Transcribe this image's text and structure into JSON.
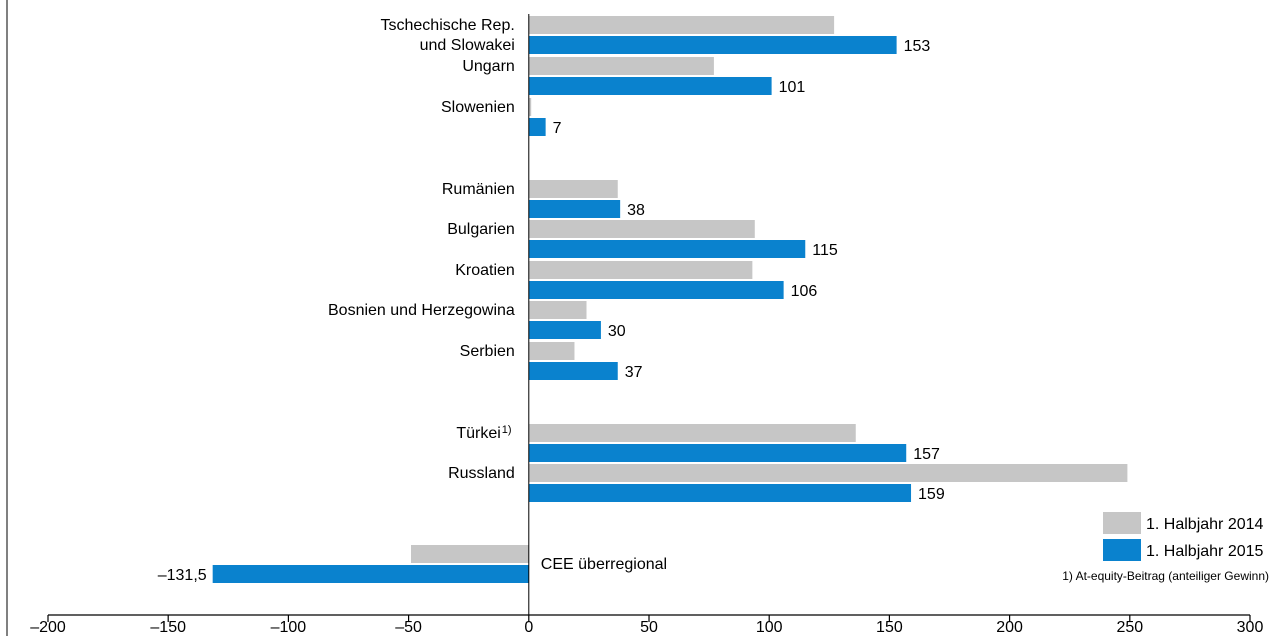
{
  "chart_data": {
    "type": "bar",
    "orientation": "horizontal",
    "groups": [
      {
        "label_lines": [
          "Tschechische Rep.",
          "und Slowakei"
        ],
        "prev": 127,
        "curr": 153,
        "curr_label": "153"
      },
      {
        "label_lines": [
          "Ungarn"
        ],
        "prev": 77,
        "curr": 101,
        "curr_label": "101"
      },
      {
        "label_lines": [
          "Slowenien"
        ],
        "prev": 1,
        "curr": 7,
        "curr_label": "7"
      },
      {
        "label_lines": [
          "Rumänien"
        ],
        "prev": 37,
        "curr": 38,
        "curr_label": "38"
      },
      {
        "label_lines": [
          "Bulgarien"
        ],
        "prev": 94,
        "curr": 115,
        "curr_label": "115"
      },
      {
        "label_lines": [
          "Kroatien"
        ],
        "prev": 93,
        "curr": 106,
        "curr_label": "106"
      },
      {
        "label_lines": [
          "Bosnien und Herzegowina"
        ],
        "prev": 24,
        "curr": 30,
        "curr_label": "30"
      },
      {
        "label_lines": [
          "Serbien"
        ],
        "prev": 19,
        "curr": 37,
        "curr_label": "37"
      },
      {
        "label_lines": [
          "Türkei"
        ],
        "sup": "1)",
        "prev": 136,
        "curr": 157,
        "curr_label": "157"
      },
      {
        "label_lines": [
          "Russland"
        ],
        "prev": 249,
        "curr": 159,
        "curr_label": "159"
      },
      {
        "label_lines": [
          "CEE überregional"
        ],
        "prev": -49,
        "curr": -131.5,
        "curr_label": "–131,5"
      }
    ],
    "series": [
      {
        "name": "1. Halbjahr 2014",
        "color": "#c6c6c6"
      },
      {
        "name": "1. Halbjahr 2015",
        "color": "#0a82ce"
      }
    ],
    "xlim": [
      -200,
      300
    ],
    "xticks": [
      -200,
      -150,
      -100,
      -50,
      0,
      50,
      100,
      150,
      200,
      250,
      300
    ],
    "xtick_labels": [
      "–200",
      "–150",
      "–100",
      "–50",
      "0",
      "50",
      "100",
      "150",
      "200",
      "250",
      "300"
    ],
    "legend_position": "bottom-right",
    "footnote": "1) At-equity-Beitrag (anteiliger Gewinn)",
    "grid": false
  }
}
